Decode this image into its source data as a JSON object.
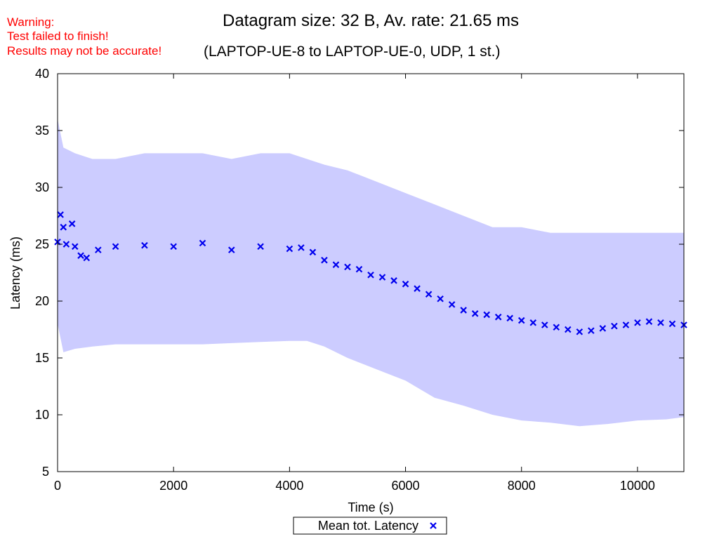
{
  "warning": {
    "line1": "Warning:",
    "line2": "Test failed to finish!",
    "line3": "Results may not be accurate!"
  },
  "colors": {
    "warning": "#ff0000",
    "series": "#0000ee",
    "band": "#ccccff"
  },
  "chart_data": {
    "type": "scatter",
    "title": "Datagram size: 32 B, Av. rate: 21.65 ms",
    "subtitle": "(LAPTOP-UE-8 to LAPTOP-UE-0, UDP, 1 st.)",
    "xlabel": "Time (s)",
    "ylabel": "Latency (ms)",
    "xlim": [
      0,
      10800
    ],
    "ylim": [
      5,
      40
    ],
    "xticks": [
      0,
      2000,
      4000,
      6000,
      8000,
      10000
    ],
    "yticks": [
      5,
      10,
      15,
      20,
      25,
      30,
      35,
      40
    ],
    "grid": false,
    "legend": {
      "position": "bottom-center",
      "entries": [
        "Mean tot. Latency"
      ]
    },
    "band": {
      "name": "",
      "x": [
        0,
        100,
        300,
        600,
        1000,
        1500,
        2000,
        2500,
        3000,
        3500,
        4000,
        4300,
        4600,
        5000,
        5500,
        6000,
        6500,
        7000,
        7500,
        8000,
        8500,
        9000,
        9500,
        10000,
        10500,
        10800
      ],
      "upper": [
        36,
        33.5,
        33,
        32.5,
        32.5,
        33,
        33,
        33,
        32.5,
        33,
        33,
        32.5,
        32,
        31.5,
        30.5,
        29.5,
        28.5,
        27.5,
        26.5,
        26.5,
        26,
        26,
        26,
        26,
        26,
        26
      ],
      "lower": [
        18,
        15.5,
        15.8,
        16,
        16.2,
        16.2,
        16.2,
        16.2,
        16.3,
        16.4,
        16.5,
        16.5,
        16,
        15,
        14,
        13,
        11.5,
        10.8,
        10,
        9.5,
        9.3,
        9,
        9.2,
        9.5,
        9.6,
        9.8
      ]
    },
    "series": [
      {
        "name": "Mean tot. Latency",
        "x": [
          0,
          50,
          100,
          150,
          250,
          300,
          400,
          500,
          700,
          1000,
          1500,
          2000,
          2500,
          3000,
          3500,
          4000,
          4200,
          4400,
          4600,
          4800,
          5000,
          5200,
          5400,
          5600,
          5800,
          6000,
          6200,
          6400,
          6600,
          6800,
          7000,
          7200,
          7400,
          7600,
          7800,
          8000,
          8200,
          8400,
          8600,
          8800,
          9000,
          9200,
          9400,
          9600,
          9800,
          10000,
          10200,
          10400,
          10600,
          10800
        ],
        "y": [
          25.2,
          27.6,
          26.5,
          25,
          26.8,
          24.8,
          24,
          23.8,
          24.5,
          24.8,
          24.9,
          24.8,
          25.1,
          24.5,
          24.8,
          24.6,
          24.7,
          24.3,
          23.6,
          23.2,
          23,
          22.8,
          22.3,
          22.1,
          21.8,
          21.5,
          21.1,
          20.6,
          20.2,
          19.7,
          19.2,
          18.9,
          18.8,
          18.6,
          18.5,
          18.3,
          18.1,
          17.9,
          17.7,
          17.5,
          17.3,
          17.4,
          17.6,
          17.8,
          17.9,
          18.1,
          18.2,
          18.1,
          18.0,
          17.9
        ]
      }
    ]
  }
}
